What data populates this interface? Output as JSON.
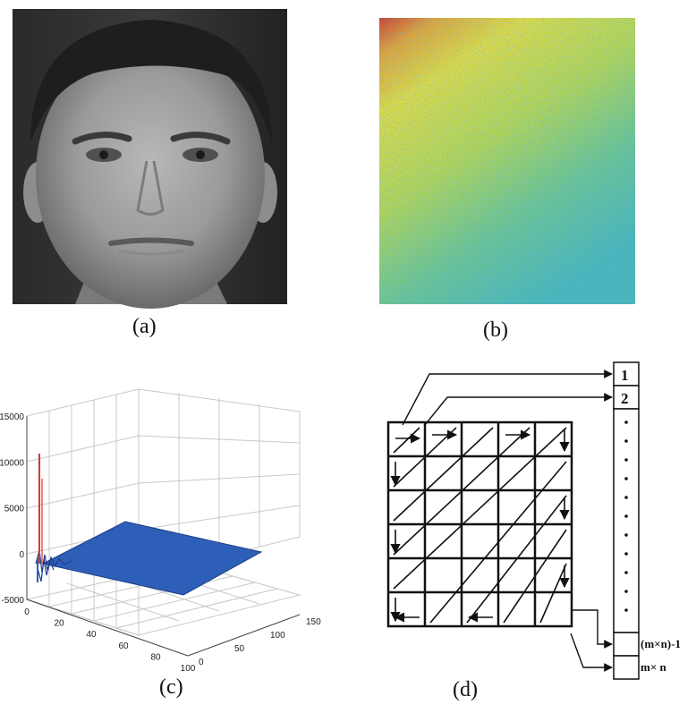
{
  "figure": {
    "panel_a": {
      "caption": "(a)"
    },
    "panel_b": {
      "caption": "(b)"
    },
    "panel_c": {
      "caption": "(c)",
      "chart_data": {
        "type": "surface",
        "title": "",
        "z_ticks": [
          "15000",
          "10000",
          "5000",
          "0",
          "-5000"
        ],
        "x_ticks": [
          "0",
          "20",
          "40",
          "60",
          "80",
          "100"
        ],
        "y_ticks": [
          "0",
          "50",
          "100",
          "150"
        ],
        "zlim": [
          -5000,
          15000
        ],
        "xlim": [
          0,
          100
        ],
        "ylim": [
          0,
          150
        ],
        "grid": true,
        "series_color": "#2e5fb8",
        "spike_color": "#d23a2a"
      }
    },
    "panel_d": {
      "caption": "(d)",
      "vector_labels": {
        "first": "1",
        "second": "2",
        "second_last": "(m×n)-1",
        "last": "m× n"
      }
    }
  }
}
